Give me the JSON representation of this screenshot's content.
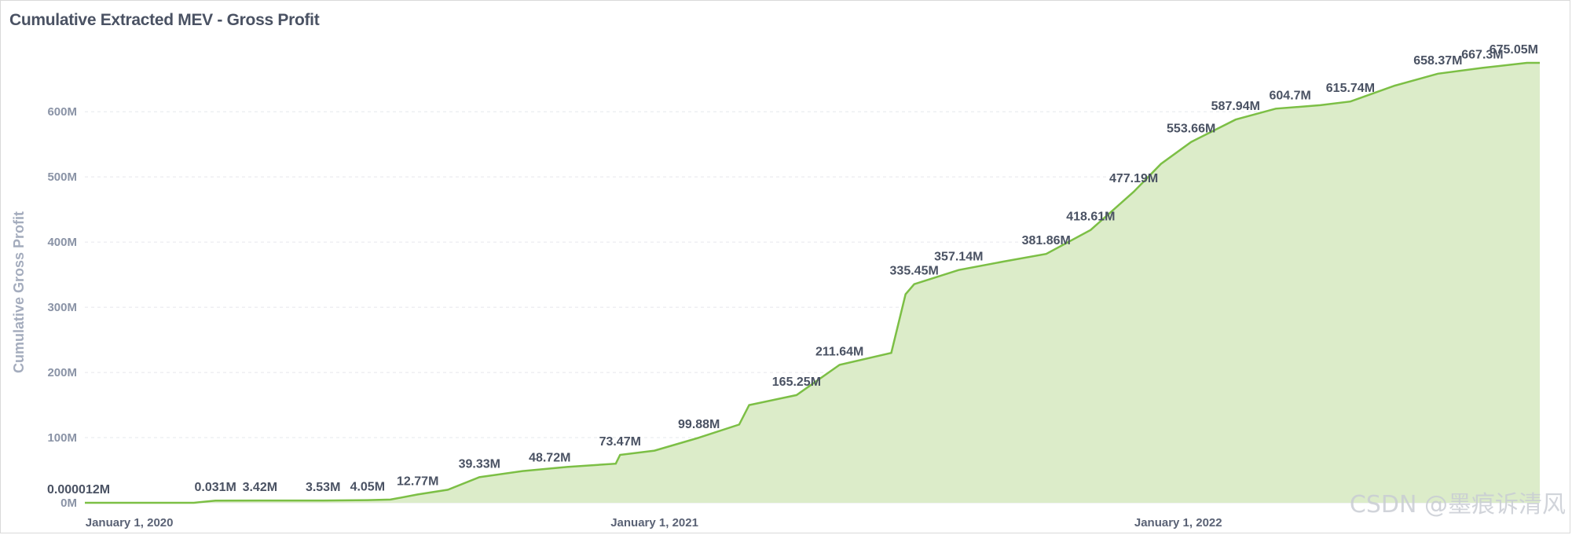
{
  "title": "Cumulative Extracted MEV - Gross Profit",
  "watermark": "CSDN @墨痕诉清风",
  "colors": {
    "line": "#7cbf45",
    "fill": "#dcecc9",
    "grid": "#e6e8ec",
    "text": "#4a5263"
  },
  "chart_data": {
    "type": "area",
    "title": "Cumulative Extracted MEV - Gross Profit",
    "xlabel": "",
    "ylabel": "Cumulative Gross Profit",
    "ylim": [
      0,
      675
    ],
    "y_ticks": [
      "0M",
      "100M",
      "200M",
      "300M",
      "400M",
      "500M",
      "600M"
    ],
    "y_tick_values": [
      0,
      100,
      200,
      300,
      400,
      500,
      600
    ],
    "x_ticks": [
      "January 1, 2020",
      "January 1, 2021",
      "January 1, 2022"
    ],
    "x_tick_values": [
      "2020-01-01",
      "2021-01-01",
      "2022-01-01"
    ],
    "grid": true,
    "legend": "none",
    "series": [
      {
        "x": [
          "2019-12-01",
          "2020-02-15",
          "2020-03-01",
          "2020-04-01",
          "2020-05-15",
          "2020-06-15",
          "2020-07-01",
          "2020-07-20",
          "2020-08-10",
          "2020-09-01",
          "2020-10-01",
          "2020-11-01",
          "2020-12-05",
          "2020-12-08",
          "2021-01-01",
          "2021-02-01",
          "2021-03-01",
          "2021-03-08",
          "2021-04-10",
          "2021-05-10",
          "2021-06-15",
          "2021-06-25",
          "2021-07-01",
          "2021-08-01",
          "2021-09-01",
          "2021-10-01",
          "2021-11-01",
          "2021-12-01",
          "2021-12-20",
          "2022-01-10",
          "2022-02-10",
          "2022-03-10",
          "2022-04-10",
          "2022-05-01",
          "2022-06-01",
          "2022-07-01",
          "2022-08-01",
          "2022-09-01"
        ],
        "values": [
          1.2e-05,
          0.031,
          3.42,
          3.53,
          3.53,
          4.05,
          5,
          12.77,
          20,
          39.33,
          48.72,
          55,
          60,
          73.47,
          80,
          99.88,
          120,
          150,
          165.25,
          211.64,
          230,
          320,
          335.45,
          357.14,
          370,
          381.86,
          418.61,
          477.19,
          520,
          553.66,
          587.94,
          604.7,
          610,
          615.74,
          640,
          658.37,
          667.3,
          675.05
        ]
      }
    ],
    "data_labels": [
      {
        "x": "2019-12-01",
        "text": "0.000012M"
      },
      {
        "x": "2020-03-01",
        "text": "0.031M"
      },
      {
        "x": "2020-04-01",
        "text": "3.42M"
      },
      {
        "x": "2020-05-15",
        "text": "3.53M"
      },
      {
        "x": "2020-06-15",
        "text": "4.05M"
      },
      {
        "x": "2020-07-20",
        "text": "12.77M"
      },
      {
        "x": "2020-09-01",
        "text": "39.33M"
      },
      {
        "x": "2020-10-20",
        "text": "48.72M"
      },
      {
        "x": "2020-12-08",
        "text": "73.47M"
      },
      {
        "x": "2021-02-01",
        "text": "99.88M"
      },
      {
        "x": "2021-04-10",
        "text": "165.25M"
      },
      {
        "x": "2021-05-10",
        "text": "211.64M"
      },
      {
        "x": "2021-07-01",
        "text": "335.45M"
      },
      {
        "x": "2021-08-01",
        "text": "357.14M"
      },
      {
        "x": "2021-10-01",
        "text": "381.86M"
      },
      {
        "x": "2021-11-01",
        "text": "418.61M"
      },
      {
        "x": "2021-12-01",
        "text": "477.19M"
      },
      {
        "x": "2022-01-10",
        "text": "553.66M"
      },
      {
        "x": "2022-02-10",
        "text": "587.94M"
      },
      {
        "x": "2022-03-20",
        "text": "604.7M"
      },
      {
        "x": "2022-05-01",
        "text": "615.74M"
      },
      {
        "x": "2022-07-01",
        "text": "658.37M"
      },
      {
        "x": "2022-08-01",
        "text": "667.3M"
      },
      {
        "x": "2022-09-01",
        "text": "675.05M"
      }
    ]
  }
}
